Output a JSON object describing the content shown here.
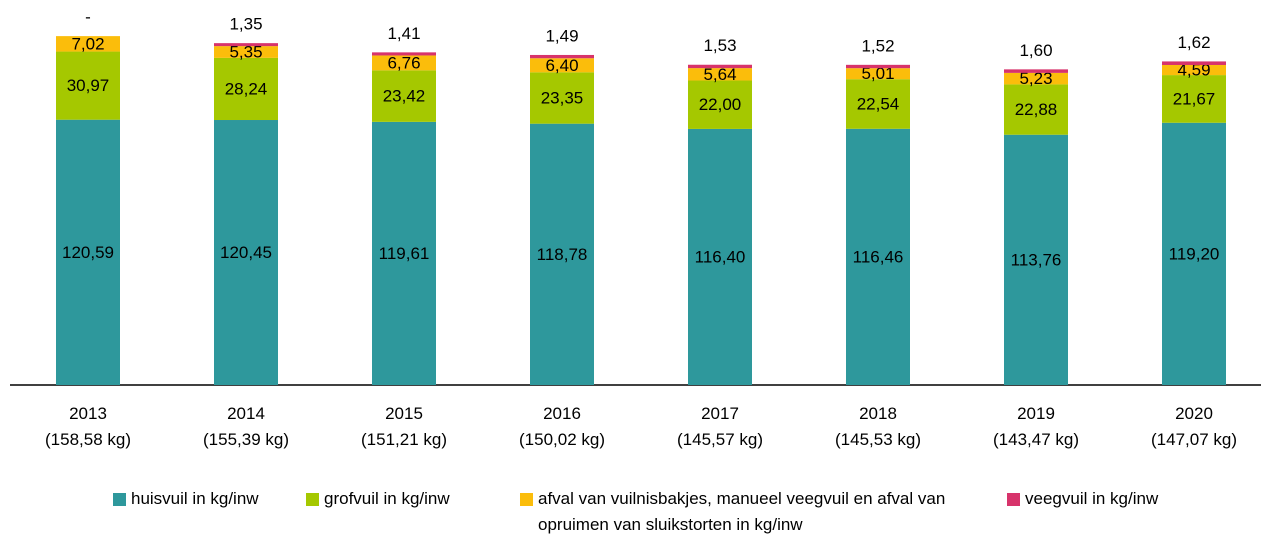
{
  "chart_data": {
    "type": "stacked_bar",
    "categories": [
      [
        "2013",
        "(158,58 kg)"
      ],
      [
        "2014",
        "(155,39 kg)"
      ],
      [
        "2015",
        "(151,21 kg)"
      ],
      [
        "2016",
        "(150,02 kg)"
      ],
      [
        "2017",
        "(145,57 kg)"
      ],
      [
        "2018",
        "(145,53 kg)"
      ],
      [
        "2019",
        "(143,47 kg)"
      ],
      [
        "2020",
        "(147,07 kg)"
      ]
    ],
    "series": [
      {
        "name": "huisvuil in kg/inw",
        "color": "#2e989c",
        "values": [
          120.59,
          120.45,
          119.61,
          118.78,
          116.4,
          116.46,
          113.76,
          119.2
        ],
        "value_labels": [
          "120,59",
          "120,45",
          "119,61",
          "118,78",
          "116,40",
          "116,46",
          "113,76",
          "119,20"
        ]
      },
      {
        "name": "grofvuil in kg/inw",
        "color": "#a5c800",
        "values": [
          30.97,
          28.24,
          23.42,
          23.35,
          22.0,
          22.54,
          22.88,
          21.67
        ],
        "value_labels": [
          "30,97",
          "28,24",
          "23,42",
          "23,35",
          "22,00",
          "22,54",
          "22,88",
          "21,67"
        ]
      },
      {
        "name": "afval van vuilnisbakjes, manueel veegvuil en afval van opruimen van sluikstorten in kg/inw",
        "color": "#fbbd0b",
        "values": [
          7.02,
          5.35,
          6.76,
          6.4,
          5.64,
          5.01,
          5.23,
          4.59
        ],
        "value_labels": [
          "7,02",
          "5,35",
          "6,76",
          "6,40",
          "5,64",
          "5,01",
          "5,23",
          "4,59"
        ]
      },
      {
        "name": "veegvuil in kg/inw",
        "color": "#d7336b",
        "values": [
          null,
          1.35,
          1.41,
          1.49,
          1.53,
          1.52,
          1.6,
          1.62
        ],
        "value_labels": [
          "-",
          "1,35",
          "1,41",
          "1,49",
          "1,53",
          "1,52",
          "1,60",
          "1,62"
        ]
      }
    ]
  }
}
